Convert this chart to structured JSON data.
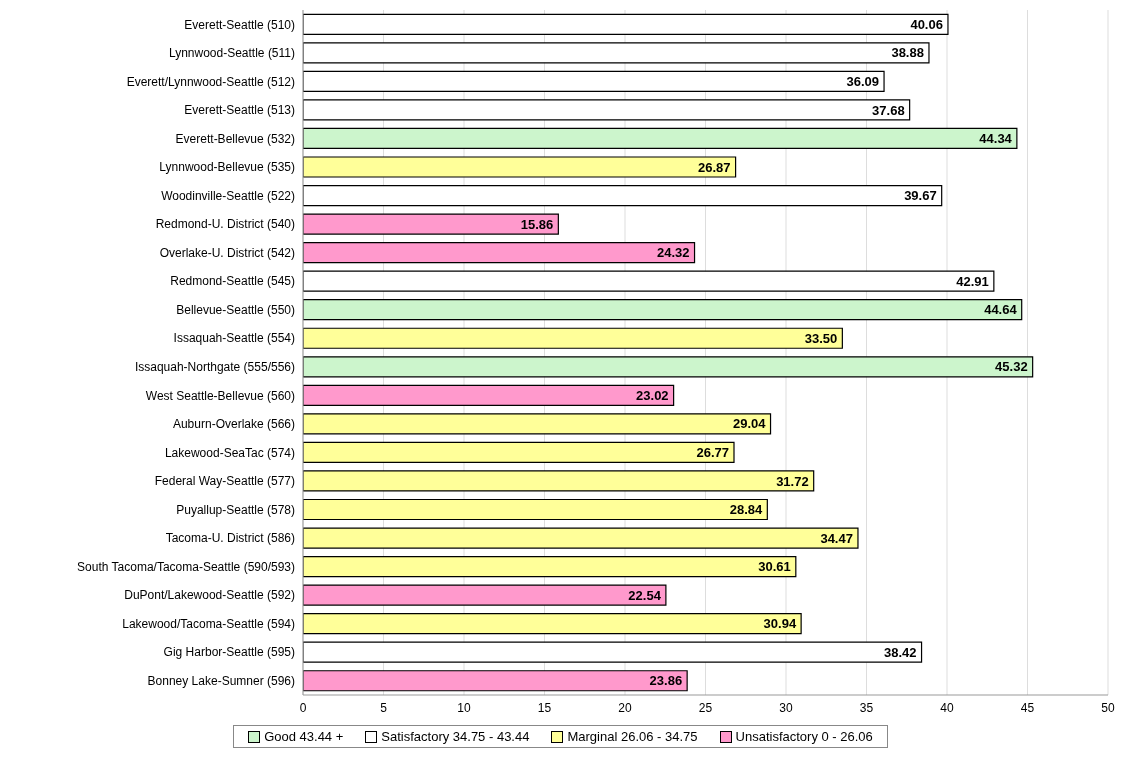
{
  "chart_data": {
    "type": "bar",
    "orientation": "horizontal",
    "stacked": true,
    "grid": "x",
    "legend": "bottom",
    "categories": [
      "Everett-Seattle (510)",
      "Lynnwood-Seattle (511)",
      "Everett/Lynnwood-Seattle (512)",
      "Everett-Seattle (513)",
      "Everett-Bellevue (532)",
      "Lynnwood-Bellevue (535)",
      "Woodinville-Seattle (522)",
      "Redmond-U. District (540)",
      "Overlake-U. District (542)",
      "Redmond-Seattle (545)",
      "Bellevue-Seattle (550)",
      "Issaquah-Seattle (554)",
      "Issaquah-Northgate (555/556)",
      "West Seattle-Bellevue (560)",
      "Auburn-Overlake (566)",
      "Lakewood-SeaTac (574)",
      "Federal Way-Seattle (577)",
      "Puyallup-Seattle (578)",
      "Tacoma-U. District (586)",
      "South Tacoma/Tacoma-Seattle (590/593)",
      "DuPont/Lakewood-Seattle (592)",
      "Lakewood/Tacoma-Seattle (594)",
      "Gig Harbor-Seattle (595)",
      "Bonney Lake-Sumner (596)"
    ],
    "series": [
      {
        "name": "Good 43.44 +",
        "color": "#ccf5cc",
        "values": [
          null,
          null,
          null,
          null,
          44.34,
          null,
          null,
          null,
          null,
          null,
          44.64,
          null,
          45.32,
          null,
          null,
          null,
          null,
          null,
          null,
          null,
          null,
          null,
          null,
          null
        ],
        "value_labels": [
          null,
          null,
          null,
          null,
          "44.34",
          null,
          null,
          null,
          null,
          null,
          "44.64",
          null,
          "45.32",
          null,
          null,
          null,
          null,
          null,
          null,
          null,
          null,
          null,
          null,
          null
        ]
      },
      {
        "name": "Satisfactory 34.75 - 43.44",
        "color": "#ffffff",
        "values": [
          40.06,
          38.88,
          36.09,
          37.68,
          null,
          null,
          39.67,
          null,
          null,
          42.91,
          null,
          null,
          null,
          null,
          null,
          null,
          null,
          null,
          null,
          null,
          null,
          null,
          38.42,
          null
        ],
        "value_labels": [
          "40.06",
          "38.88",
          "36.09",
          "37.68",
          null,
          null,
          "39.67",
          null,
          null,
          "42.91",
          null,
          null,
          null,
          null,
          null,
          null,
          null,
          null,
          null,
          null,
          null,
          null,
          "38.42",
          null
        ]
      },
      {
        "name": "Marginal 26.06 - 34.75",
        "color": "#ffff99",
        "values": [
          null,
          null,
          null,
          null,
          null,
          26.87,
          null,
          null,
          null,
          null,
          null,
          33.5,
          null,
          null,
          29.04,
          26.77,
          31.72,
          28.84,
          34.47,
          30.61,
          null,
          30.94,
          null,
          null
        ],
        "value_labels": [
          null,
          null,
          null,
          null,
          null,
          "26.87",
          null,
          null,
          null,
          null,
          null,
          "33.50",
          null,
          null,
          "29.04",
          "26.77",
          "31.72",
          "28.84",
          "34.47",
          "30.61",
          null,
          "30.94",
          null,
          null
        ]
      },
      {
        "name": "Unsatisfactory 0 - 26.06",
        "color": "#ff99cc",
        "values": [
          null,
          null,
          null,
          null,
          null,
          null,
          null,
          15.86,
          24.32,
          null,
          null,
          null,
          null,
          23.02,
          null,
          null,
          null,
          null,
          null,
          null,
          22.54,
          null,
          null,
          23.86
        ],
        "value_labels": [
          null,
          null,
          null,
          null,
          null,
          null,
          null,
          "15.86",
          "24.32",
          null,
          null,
          null,
          null,
          "23.02",
          null,
          null,
          null,
          null,
          null,
          null,
          "22.54",
          null,
          null,
          "23.86"
        ]
      }
    ],
    "xlim": [
      0,
      50
    ],
    "xticks": [
      0,
      5,
      10,
      15,
      20,
      25,
      30,
      35,
      40,
      45,
      50
    ]
  }
}
